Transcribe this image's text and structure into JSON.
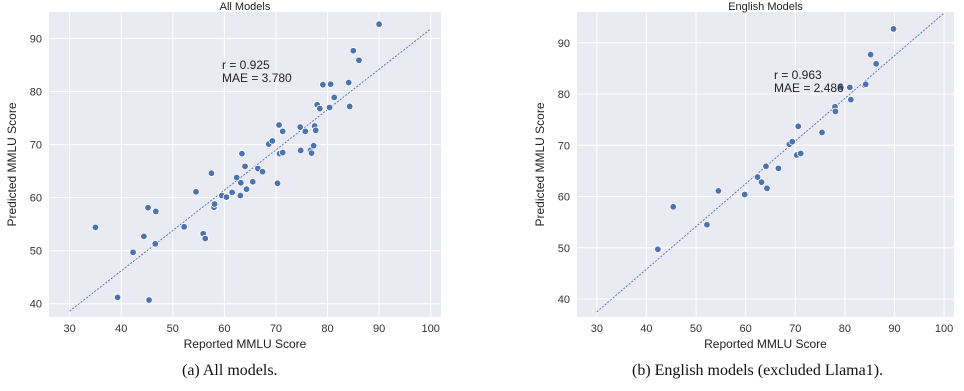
{
  "chart_data": [
    {
      "type": "scatter",
      "title": "All Models",
      "xlabel": "Reported MMLU Score",
      "ylabel": "Predicted MMLU Score",
      "xlim": [
        26,
        102
      ],
      "ylim": [
        37.5,
        95
      ],
      "xticks": [
        "30",
        "40",
        "50",
        "60",
        "70",
        "80",
        "90",
        "100"
      ],
      "yticks": [
        "40",
        "50",
        "60",
        "70",
        "80",
        "90"
      ],
      "grid": true,
      "style": "dark-grid",
      "annotations": [
        "r = 0.925",
        "MAE = 3.780"
      ],
      "fit_line": {
        "x": [
          30,
          100
        ],
        "y": [
          38.6,
          91.8
        ],
        "style": "dotted"
      },
      "marker_color": "#4c72b0",
      "background_color": "#eaeaf2",
      "points": [
        [
          35.0,
          54.4
        ],
        [
          39.3,
          41.2
        ],
        [
          42.3,
          49.7
        ],
        [
          44.4,
          52.7
        ],
        [
          45.2,
          58.1
        ],
        [
          45.4,
          40.7
        ],
        [
          46.6,
          51.3
        ],
        [
          46.7,
          57.4
        ],
        [
          52.2,
          54.5
        ],
        [
          54.5,
          61.1
        ],
        [
          55.9,
          53.2
        ],
        [
          56.3,
          52.3
        ],
        [
          57.5,
          64.6
        ],
        [
          58.0,
          58.2
        ],
        [
          58.1,
          58.8
        ],
        [
          59.5,
          60.4
        ],
        [
          60.4,
          60.1
        ],
        [
          61.5,
          61.0
        ],
        [
          62.4,
          63.8
        ],
        [
          63.1,
          60.4
        ],
        [
          63.2,
          62.8
        ],
        [
          63.4,
          68.3
        ],
        [
          64.0,
          65.9
        ],
        [
          64.3,
          61.6
        ],
        [
          65.5,
          63.0
        ],
        [
          66.5,
          65.5
        ],
        [
          67.4,
          64.9
        ],
        [
          68.6,
          70.1
        ],
        [
          69.3,
          70.7
        ],
        [
          70.3,
          62.7
        ],
        [
          70.6,
          73.7
        ],
        [
          70.7,
          68.3
        ],
        [
          71.3,
          68.5
        ],
        [
          71.3,
          72.5
        ],
        [
          74.7,
          73.3
        ],
        [
          74.8,
          68.9
        ],
        [
          75.7,
          72.5
        ],
        [
          76.7,
          68.9
        ],
        [
          76.9,
          68.4
        ],
        [
          77.3,
          69.8
        ],
        [
          77.5,
          73.5
        ],
        [
          77.7,
          72.7
        ],
        [
          78.0,
          77.5
        ],
        [
          78.5,
          76.8
        ],
        [
          79.1,
          81.3
        ],
        [
          80.4,
          77.0
        ],
        [
          80.6,
          81.4
        ],
        [
          81.3,
          78.9
        ],
        [
          84.1,
          81.7
        ],
        [
          84.3,
          77.2
        ],
        [
          85.0,
          87.7
        ],
        [
          86.1,
          85.9
        ],
        [
          90.0,
          92.7
        ]
      ]
    },
    {
      "type": "scatter",
      "title": "English Models",
      "xlabel": "Reported MMLU Score",
      "ylabel": "Predicted MMLU Score",
      "xlim": [
        26,
        102
      ],
      "ylim": [
        36.5,
        96
      ],
      "xticks": [
        "30",
        "40",
        "50",
        "60",
        "70",
        "80",
        "90",
        "100"
      ],
      "yticks": [
        "40",
        "50",
        "60",
        "70",
        "80",
        "90"
      ],
      "grid": true,
      "style": "dark-grid",
      "annotations": [
        "r = 0.963",
        "MAE = 2.486"
      ],
      "fit_line": {
        "x": [
          30,
          100
        ],
        "y": [
          37.5,
          95.8
        ],
        "style": "dotted"
      },
      "marker_color": "#4c72b0",
      "background_color": "#eaeaf2",
      "points": [
        [
          42.3,
          49.7
        ],
        [
          45.4,
          58.0
        ],
        [
          52.2,
          54.5
        ],
        [
          54.5,
          61.1
        ],
        [
          59.8,
          60.4
        ],
        [
          62.4,
          63.8
        ],
        [
          63.2,
          62.8
        ],
        [
          64.1,
          65.9
        ],
        [
          64.3,
          61.6
        ],
        [
          66.6,
          65.5
        ],
        [
          68.8,
          70.2
        ],
        [
          69.4,
          70.7
        ],
        [
          70.3,
          68.1
        ],
        [
          70.6,
          73.7
        ],
        [
          71.1,
          68.4
        ],
        [
          75.4,
          72.5
        ],
        [
          78.0,
          77.5
        ],
        [
          78.1,
          76.6
        ],
        [
          79.2,
          81.3
        ],
        [
          81.0,
          81.3
        ],
        [
          81.2,
          78.9
        ],
        [
          84.0,
          81.7
        ],
        [
          84.2,
          81.9
        ],
        [
          85.2,
          87.7
        ],
        [
          86.3,
          85.9
        ],
        [
          89.8,
          92.7
        ]
      ]
    }
  ],
  "captions": [
    "(a)  All models.",
    "(b)  English models (excluded Llama1)."
  ]
}
